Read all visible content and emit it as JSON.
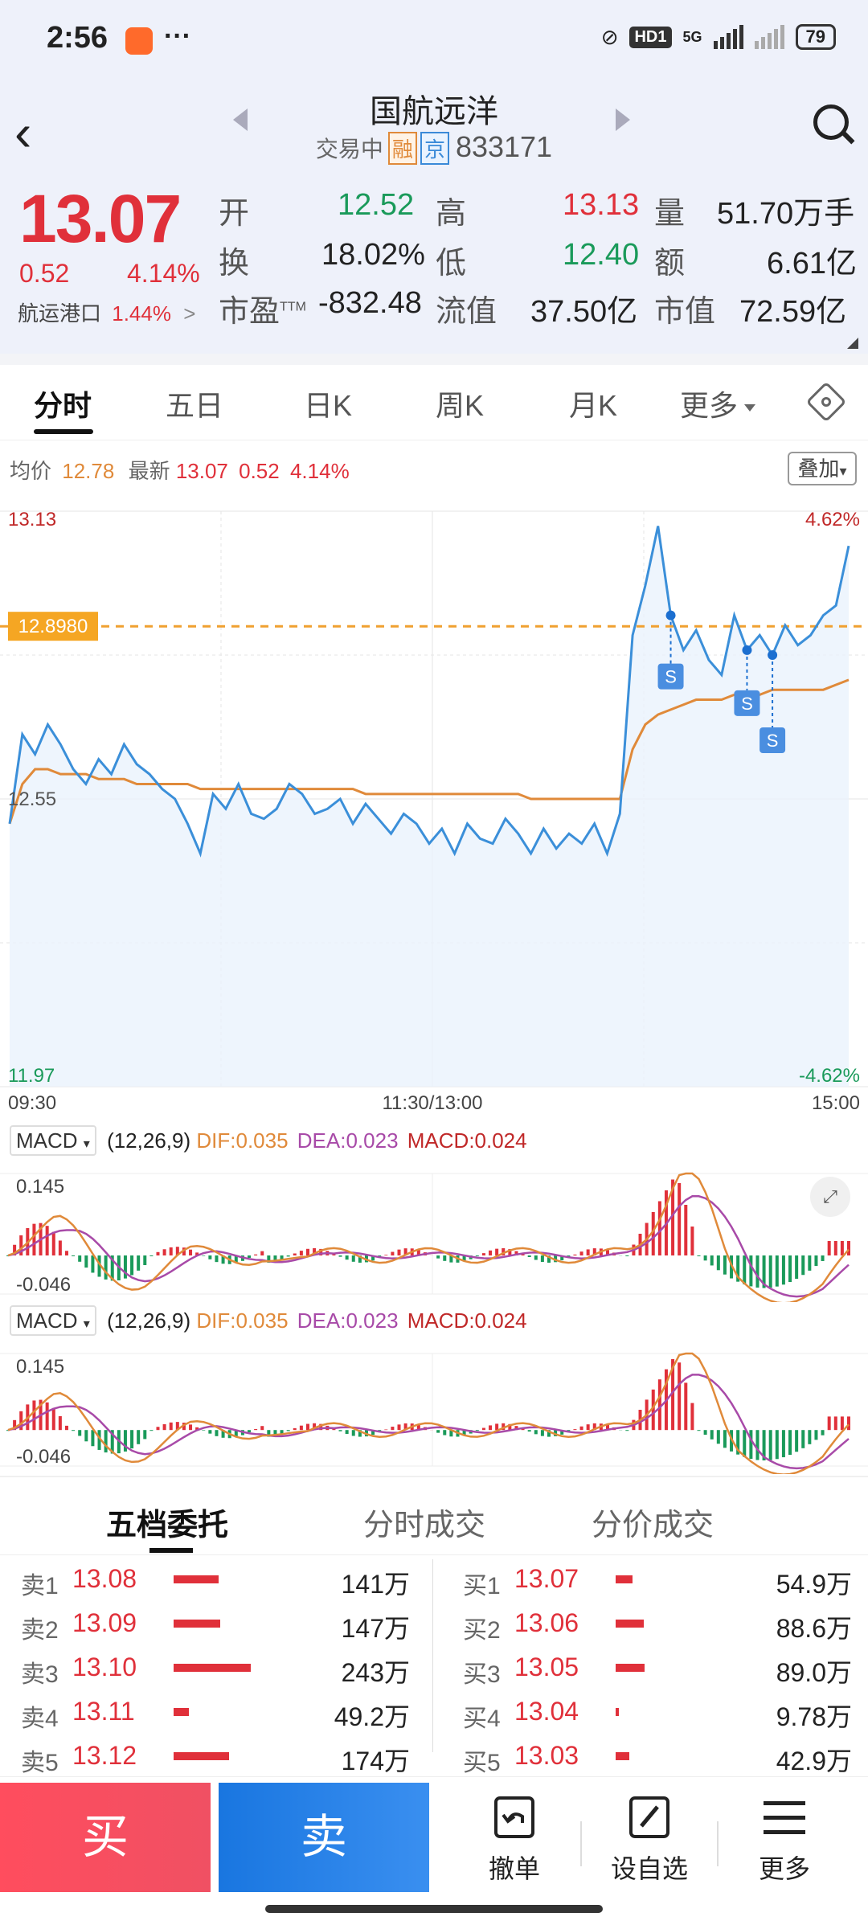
{
  "status": {
    "time": "2:56",
    "network": "5G",
    "hd": "HD1",
    "battery": "79"
  },
  "header": {
    "title": "国航远洋",
    "trading_status": "交易中",
    "tag_margin": "融",
    "tag_exchange": "京",
    "code": "833171"
  },
  "quote": {
    "price": "13.07",
    "change": "0.52",
    "change_pct": "4.14%",
    "sector_name": "航运港口",
    "sector_pct": "1.44%",
    "sector_arrow": ">",
    "fields": {
      "open_label": "开",
      "open": "12.52",
      "high_label": "高",
      "high": "13.13",
      "volume_label": "量",
      "volume": "51.70万手",
      "turnover_label": "换",
      "turnover": "18.02%",
      "low_label": "低",
      "low": "12.40",
      "amount_label": "额",
      "amount": "6.61亿",
      "pe_label": "市盈",
      "pe_sup": "TTM",
      "pe": "-832.48",
      "float_label": "流值",
      "float_value": "37.50亿",
      "mcap_label": "市值",
      "mcap": "72.59亿"
    }
  },
  "tabs": [
    "分时",
    "五日",
    "日K",
    "周K",
    "月K",
    "更多"
  ],
  "info": {
    "avg_label": "均价",
    "avg": "12.78",
    "latest_label": "最新",
    "latest": "13.07",
    "chg": "0.52",
    "pct": "4.14%",
    "overlay": "叠加"
  },
  "chart": {
    "y_top": "13.13",
    "y_bottom": "11.97",
    "y_mid": "12.55",
    "pct_top": "4.62%",
    "pct_bottom": "-4.62%",
    "ref_line_label": "12.8980",
    "x_start": "09:30",
    "x_mid": "11:30/13:00",
    "x_end": "15:00",
    "marker_label": "S"
  },
  "chart_data": {
    "type": "line",
    "title": "",
    "xlabel": "",
    "ylabel": "",
    "x_ticks": [
      "09:30",
      "11:30/13:00",
      "15:00"
    ],
    "ylim": [
      11.97,
      13.13
    ],
    "series": [
      {
        "name": "",
        "color": "#3b8fd9",
        "values": [
          12.5,
          12.68,
          12.64,
          12.7,
          12.66,
          12.61,
          12.58,
          12.63,
          12.6,
          12.66,
          12.62,
          12.6,
          12.57,
          12.55,
          12.5,
          12.44,
          12.56,
          12.53,
          12.58,
          12.52,
          12.51,
          12.53,
          12.58,
          12.56,
          12.52,
          12.53,
          12.55,
          12.5,
          12.54,
          12.51,
          12.48,
          12.52,
          12.5,
          12.46,
          12.49,
          12.44,
          12.5,
          12.47,
          12.46,
          12.51,
          12.48,
          12.44,
          12.49,
          12.45,
          12.48,
          12.46,
          12.5,
          12.44,
          12.52,
          12.88,
          12.98,
          13.1,
          12.92,
          12.85,
          12.89,
          12.83,
          12.8,
          12.92,
          12.85,
          12.88,
          12.84,
          12.9,
          12.86,
          12.88,
          12.92,
          12.94,
          13.06
        ]
      },
      {
        "name": "",
        "color": "#e08a3a",
        "values": [
          12.5,
          12.58,
          12.61,
          12.61,
          12.6,
          12.6,
          12.6,
          12.59,
          12.59,
          12.59,
          12.58,
          12.58,
          12.58,
          12.58,
          12.58,
          12.57,
          12.57,
          12.57,
          12.57,
          12.57,
          12.57,
          12.57,
          12.57,
          12.57,
          12.57,
          12.57,
          12.57,
          12.57,
          12.56,
          12.56,
          12.56,
          12.56,
          12.56,
          12.56,
          12.56,
          12.56,
          12.56,
          12.56,
          12.56,
          12.56,
          12.56,
          12.55,
          12.55,
          12.55,
          12.55,
          12.55,
          12.55,
          12.55,
          12.55,
          12.65,
          12.7,
          12.72,
          12.73,
          12.74,
          12.75,
          12.75,
          12.75,
          12.76,
          12.76,
          12.76,
          12.77,
          12.77,
          12.77,
          12.77,
          12.77,
          12.78,
          12.79
        ]
      }
    ],
    "reference_line": 12.898,
    "markers_count": 3
  },
  "macd": {
    "selector": "MACD",
    "params": "(12,26,9)",
    "dif": "DIF:0.035",
    "dea": "DEA:0.023",
    "macd": "MACD:0.024",
    "top": "0.145",
    "bottom": "-0.046"
  },
  "orderbook": {
    "tabs": [
      "五档委托",
      "分时成交",
      "分价成交"
    ],
    "asks": [
      {
        "name": "卖1",
        "price": "13.08",
        "vol": "141万",
        "bar": 0.58
      },
      {
        "name": "卖2",
        "price": "13.09",
        "vol": "147万",
        "bar": 0.6
      },
      {
        "name": "卖3",
        "price": "13.10",
        "vol": "243万",
        "bar": 1.0
      },
      {
        "name": "卖4",
        "price": "13.11",
        "vol": "49.2万",
        "bar": 0.2
      },
      {
        "name": "卖5",
        "price": "13.12",
        "vol": "174万",
        "bar": 0.72
      }
    ],
    "bids": [
      {
        "name": "买1",
        "price": "13.07",
        "vol": "54.9万",
        "bar": 0.22
      },
      {
        "name": "买2",
        "price": "13.06",
        "vol": "88.6万",
        "bar": 0.36
      },
      {
        "name": "买3",
        "price": "13.05",
        "vol": "89.0万",
        "bar": 0.37
      },
      {
        "name": "买4",
        "price": "13.04",
        "vol": "9.78万",
        "bar": 0.04
      },
      {
        "name": "买5",
        "price": "13.03",
        "vol": "42.9万",
        "bar": 0.18
      }
    ]
  },
  "bottom": {
    "buy": "买",
    "sell": "卖",
    "cancel": "撤单",
    "watch": "设自选",
    "more": "更多"
  }
}
